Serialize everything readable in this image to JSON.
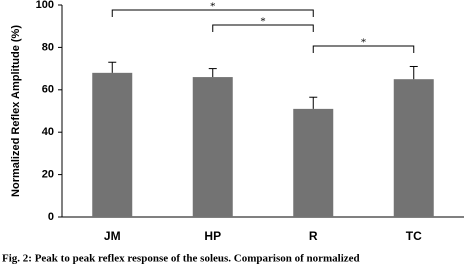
{
  "chart_data": {
    "type": "bar",
    "y_label": "Normalized Reflex Amplitude (%)",
    "categories": [
      "JM",
      "HP",
      "R",
      "TC"
    ],
    "values": [
      68,
      66,
      51,
      65
    ],
    "errors": [
      5,
      4,
      5.5,
      6
    ],
    "color": "#737373",
    "ylim": [
      0,
      100
    ],
    "yticks": [
      0,
      20,
      40,
      60,
      80,
      100
    ],
    "significance": [
      {
        "text": "*",
        "between": [
          "JM",
          "R"
        ]
      },
      {
        "text": "*",
        "between": [
          "HP",
          "R"
        ]
      },
      {
        "text": "*",
        "between": [
          "R",
          "TC"
        ]
      }
    ],
    "caption": "Fig. 2: Peak to peak reflex response of the soleus. Comparison of normalized"
  }
}
